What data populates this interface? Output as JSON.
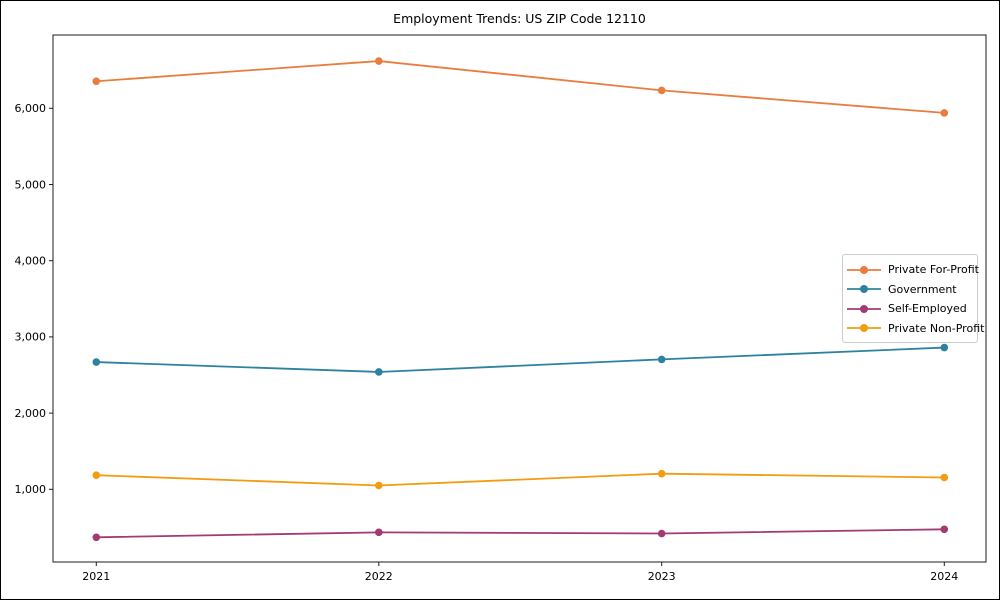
{
  "window": {
    "background": "#ffffff",
    "axis_color": "#1c1c1c",
    "text_color": "#000000"
  },
  "chart_data": {
    "type": "line",
    "title": "Employment Trends: US ZIP Code 12110",
    "xlabel": "",
    "ylabel": "",
    "grid": false,
    "marker": "circle",
    "legend_position": "center-right",
    "x_categories": [
      "2021",
      "2022",
      "2023",
      "2024"
    ],
    "series": [
      {
        "name": "Private For-Profit",
        "color": "#E87D3F",
        "values": [
          6355,
          6620,
          6235,
          5940
        ]
      },
      {
        "name": "Government",
        "color": "#2E82A0",
        "values": [
          2670,
          2540,
          2705,
          2860
        ]
      },
      {
        "name": "Self-Employed",
        "color": "#A23B72",
        "values": [
          370,
          435,
          420,
          475
        ]
      },
      {
        "name": "Private Non-Profit",
        "color": "#F39C12",
        "values": [
          1185,
          1050,
          1205,
          1155
        ]
      }
    ],
    "ylim": [
      46,
      6962
    ],
    "ytick_values": [
      1000,
      2000,
      3000,
      4000,
      5000,
      6000
    ],
    "ytick_labels": [
      "1,000",
      "2,000",
      "3,000",
      "4,000",
      "5,000",
      "6,000"
    ]
  }
}
